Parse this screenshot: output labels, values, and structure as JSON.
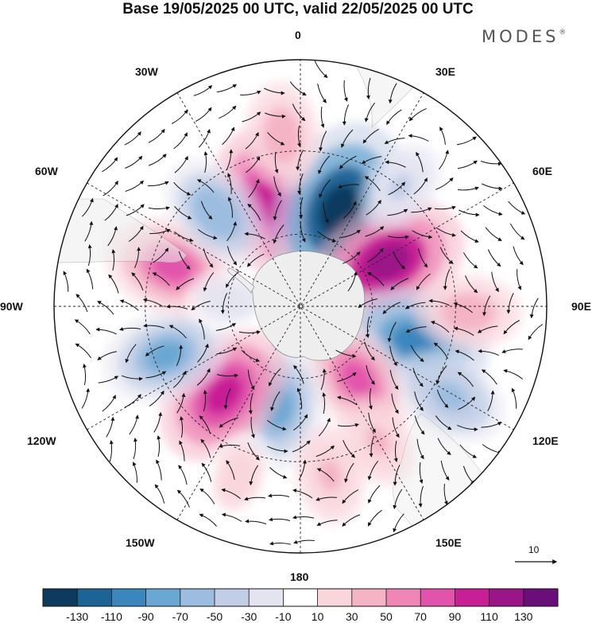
{
  "header": {
    "title": "Base 19/05/2025 00 UTC, valid 22/05/2025 00 UTC",
    "brand": "MODES",
    "brand_mark": "®"
  },
  "longitude_labels": [
    {
      "id": "0",
      "text": "0"
    },
    {
      "id": "30e",
      "text": "30E"
    },
    {
      "id": "60e",
      "text": "60E"
    },
    {
      "id": "90e",
      "text": "90E"
    },
    {
      "id": "120e",
      "text": "120E"
    },
    {
      "id": "150e",
      "text": "150E"
    },
    {
      "id": "180",
      "text": "180"
    },
    {
      "id": "150w",
      "text": "150W"
    },
    {
      "id": "120w",
      "text": "120W"
    },
    {
      "id": "90w",
      "text": "90W"
    },
    {
      "id": "60w",
      "text": "60W"
    },
    {
      "id": "30w",
      "text": "30W"
    }
  ],
  "reference_vector": {
    "label": "10"
  },
  "colorbar": {
    "colors": [
      "#0e3a5e",
      "#1d6396",
      "#3a86bd",
      "#6aa7d2",
      "#9cbde0",
      "#c2cde6",
      "#e4e4f1",
      "#ffffff",
      "#f9d6dc",
      "#f4b4c6",
      "#ee86b6",
      "#e254ac",
      "#c81e96",
      "#9b1588",
      "#6a0f79"
    ],
    "labels": [
      "-130",
      "-110",
      "-90",
      "-70",
      "-50",
      "-30",
      "-10",
      "10",
      "30",
      "50",
      "70",
      "90",
      "110",
      "130"
    ]
  },
  "anomaly_cells": [
    {
      "lon": -18,
      "lat": -46,
      "value": 95
    },
    {
      "lon": 22,
      "lat": -48,
      "value": -135
    },
    {
      "lon": 63,
      "lat": -50,
      "value": 110
    },
    {
      "lon": 107,
      "lat": -42,
      "value": -95
    },
    {
      "lon": 142,
      "lat": -52,
      "value": 70
    },
    {
      "lon": 121,
      "lat": -24,
      "value": -55
    },
    {
      "lon": 92,
      "lat": -26,
      "value": 45
    },
    {
      "lon": -168,
      "lat": -48,
      "value": -70
    },
    {
      "lon": -139,
      "lat": -43,
      "value": 95
    },
    {
      "lon": -110,
      "lat": -34,
      "value": -70
    },
    {
      "lon": -73,
      "lat": -37,
      "value": 80
    },
    {
      "lon": -42,
      "lat": -40,
      "value": -60
    },
    {
      "lon": -6,
      "lat": -25,
      "value": 45
    },
    {
      "lon": 40,
      "lat": -30,
      "value": -30
    },
    {
      "lon": -160,
      "lat": -22,
      "value": 25
    },
    {
      "lon": 170,
      "lat": -25,
      "value": 35
    },
    {
      "lon": -85,
      "lat": -60,
      "value": -20
    },
    {
      "lon": 150,
      "lat": -30,
      "value": 30
    }
  ]
}
